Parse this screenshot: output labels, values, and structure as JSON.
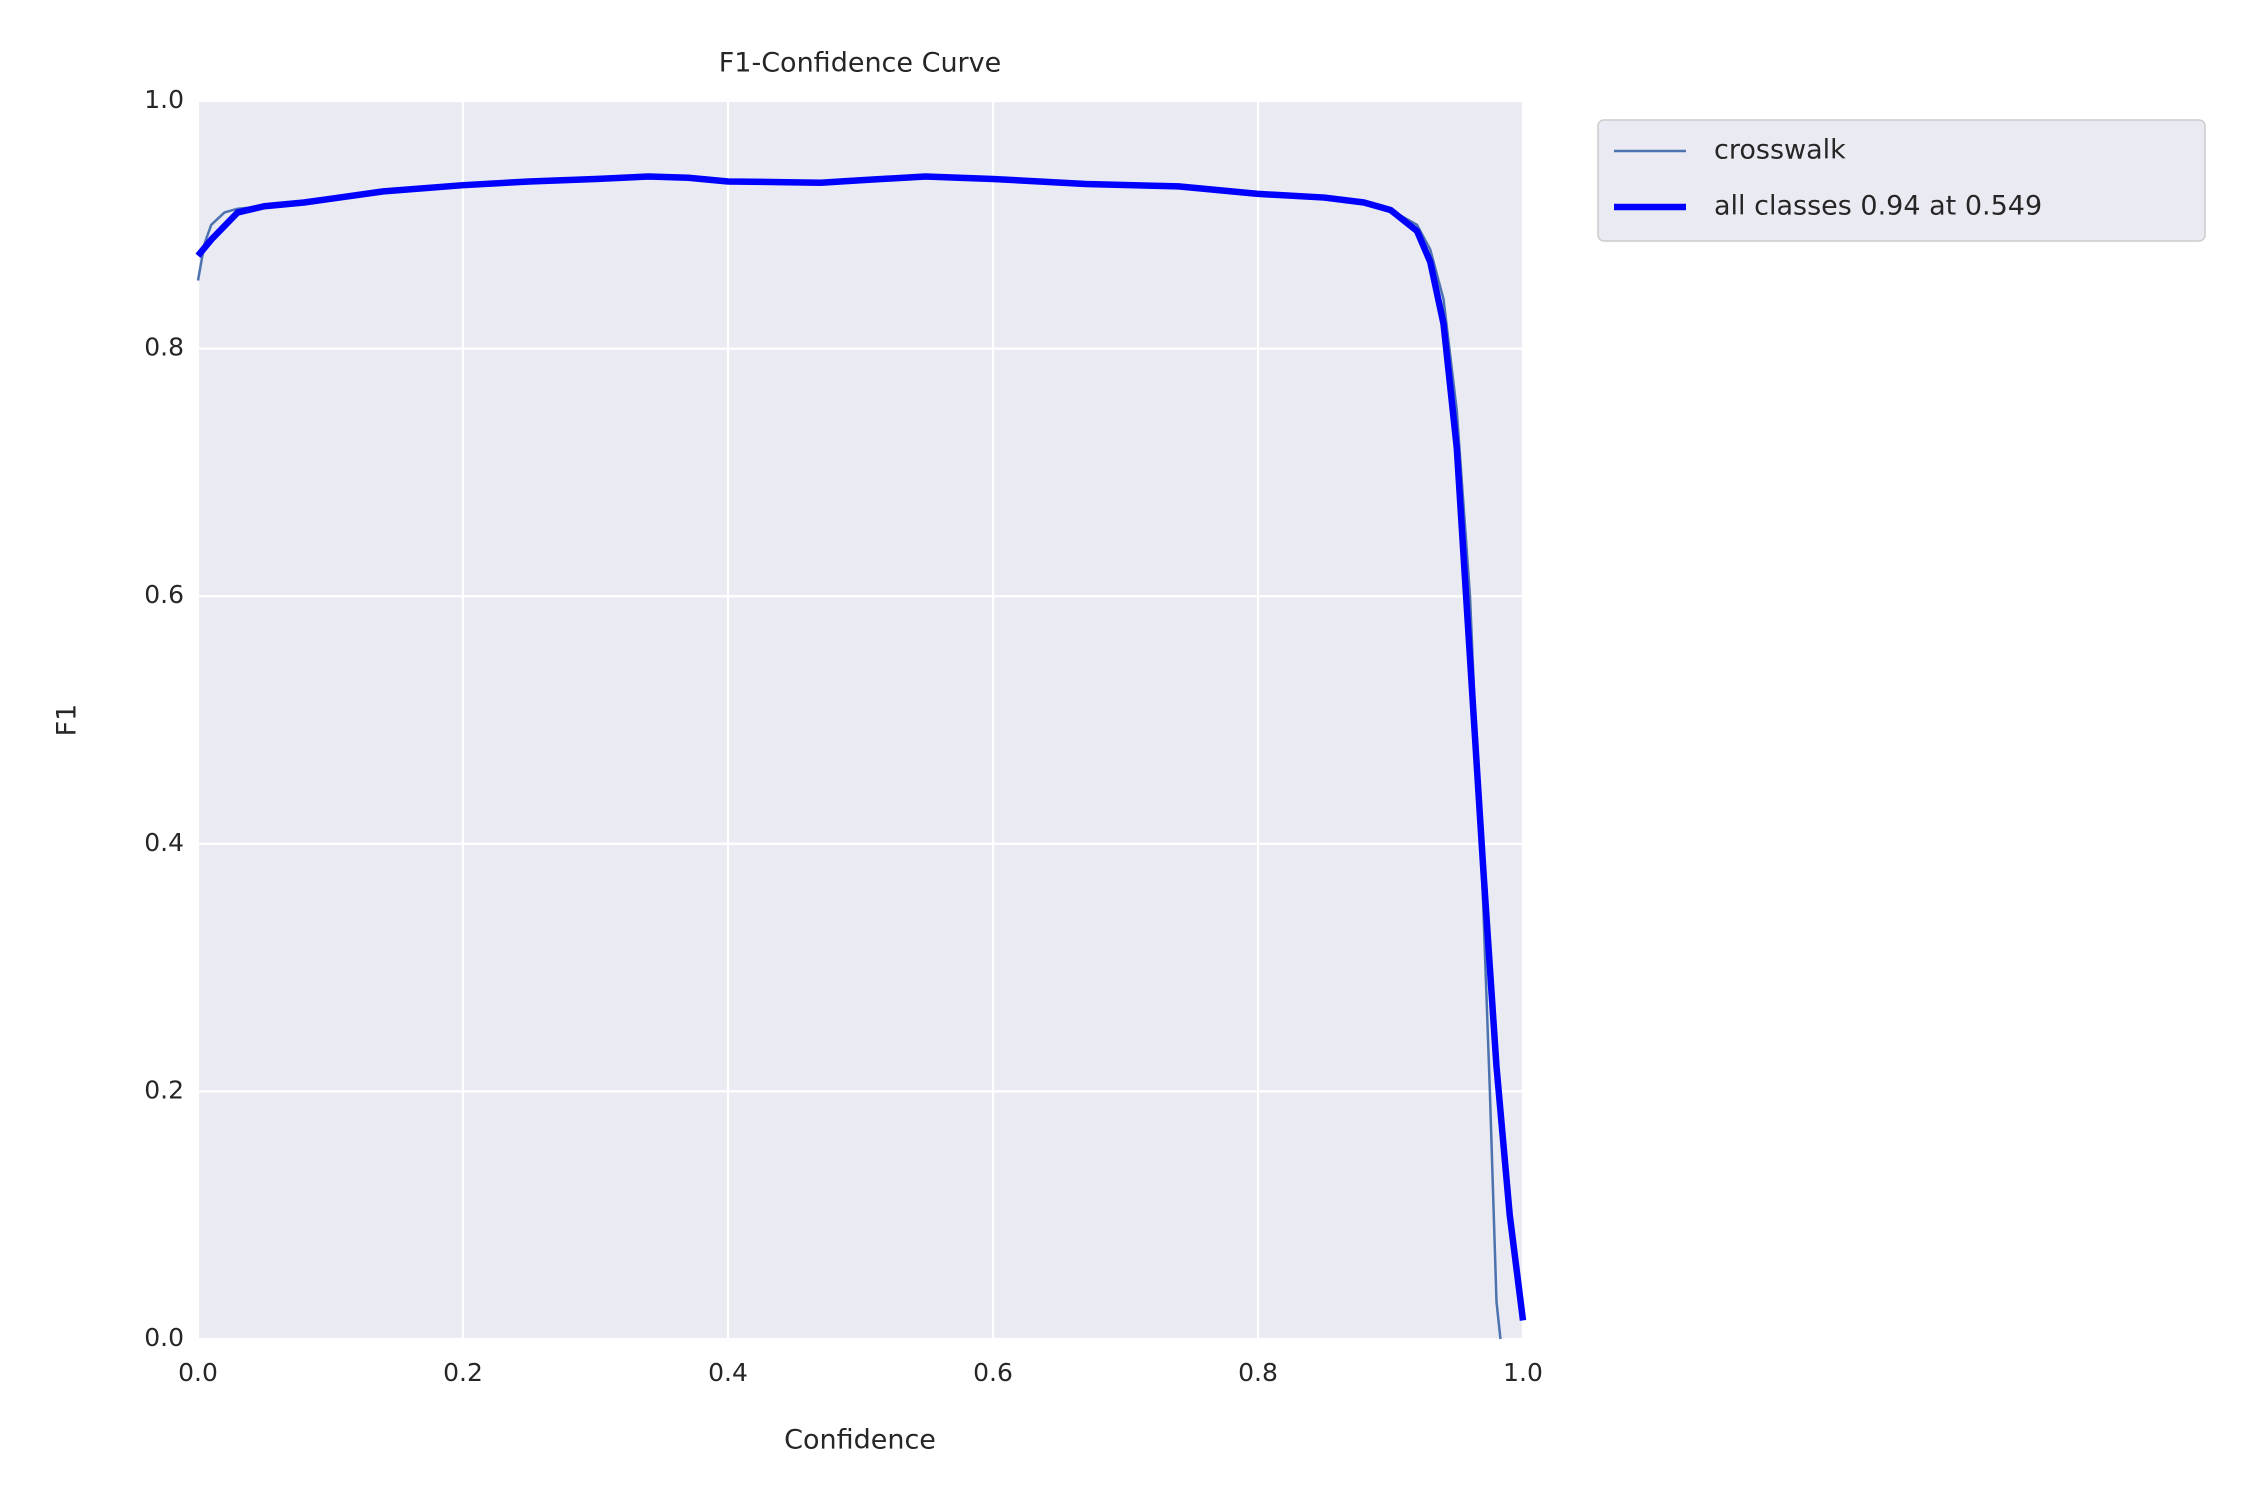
{
  "chart_data": {
    "type": "line",
    "title": "F1-Confidence Curve",
    "x_label": "Confidence",
    "y_label": "F1",
    "xlim": [
      0,
      1
    ],
    "ylim": [
      0,
      1
    ],
    "xticks": [
      {
        "value": 0,
        "label": "0.0"
      },
      0.2,
      0.4,
      0.6,
      0.8,
      {
        "value": 1,
        "label": "1.0"
      }
    ],
    "yticks": [
      {
        "value": 0,
        "label": "0.0"
      },
      0.2,
      0.4,
      0.6,
      0.8,
      {
        "value": 1,
        "label": "1.0"
      }
    ],
    "grid": true,
    "legend": "outside upper right",
    "series": [
      {
        "name": "crosswalk",
        "color": "#4c72b0",
        "x": [
          0,
          0.005,
          0.01,
          0.02,
          0.03,
          0.05,
          0.08,
          0.1,
          0.14,
          0.2,
          0.25,
          0.3,
          0.34,
          0.37,
          0.4,
          0.47,
          0.5,
          0.549,
          0.6,
          0.67,
          0.74,
          0.8,
          0.85,
          0.88,
          0.9,
          0.92,
          0.93,
          0.94,
          0.95,
          0.96,
          0.97,
          0.975,
          0.98,
          0.983
        ],
        "values": [
          0.855,
          0.885,
          0.9,
          0.91,
          0.913,
          0.915,
          0.918,
          0.921,
          0.927,
          0.932,
          0.935,
          0.937,
          0.939,
          0.938,
          0.935,
          0.934,
          0.936,
          0.939,
          0.937,
          0.933,
          0.931,
          0.925,
          0.922,
          0.918,
          0.912,
          0.9,
          0.88,
          0.84,
          0.75,
          0.6,
          0.35,
          0.2,
          0.03,
          0
        ]
      },
      {
        "name": "all classes 0.94 at 0.549",
        "color": "#0000ff",
        "x": [
          0,
          0.01,
          0.03,
          0.05,
          0.08,
          0.1,
          0.14,
          0.2,
          0.25,
          0.3,
          0.34,
          0.37,
          0.4,
          0.47,
          0.5,
          0.549,
          0.6,
          0.67,
          0.74,
          0.8,
          0.85,
          0.88,
          0.9,
          0.92,
          0.93,
          0.94,
          0.95,
          0.96,
          0.97,
          0.98,
          0.99,
          1.0
        ],
        "values": [
          0.875,
          0.888,
          0.91,
          0.915,
          0.918,
          0.921,
          0.927,
          0.932,
          0.935,
          0.937,
          0.939,
          0.938,
          0.935,
          0.934,
          0.936,
          0.939,
          0.937,
          0.933,
          0.931,
          0.925,
          0.922,
          0.918,
          0.912,
          0.895,
          0.87,
          0.82,
          0.72,
          0.55,
          0.38,
          0.22,
          0.1,
          0.015
        ]
      }
    ]
  }
}
